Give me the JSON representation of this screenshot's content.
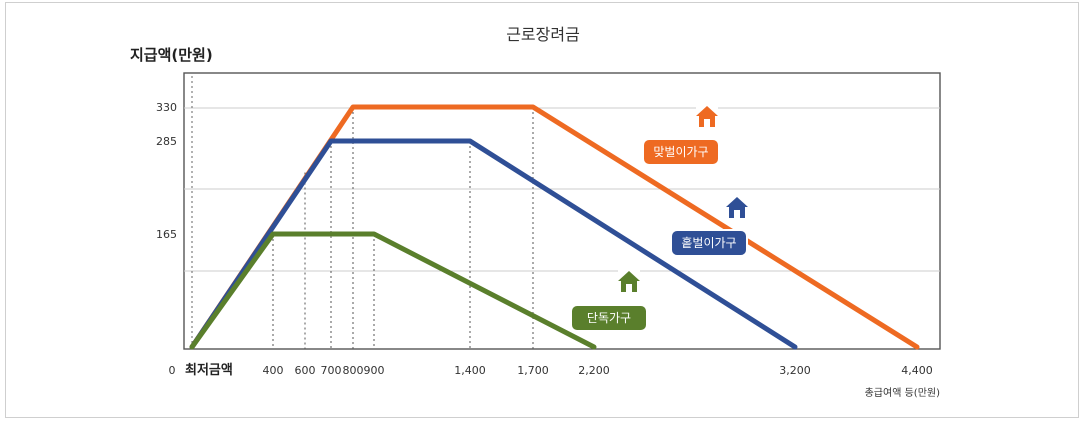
{
  "chart_data": {
    "type": "line",
    "title": "근로장려금",
    "ylabel": "지급액(만원)",
    "xlabel": "총급여액 등(만원)",
    "x_origin_label": "0",
    "min_wage_label": "최저금액",
    "x_ticks": [
      {
        "value": 400,
        "label": "400"
      },
      {
        "value": 600,
        "label": "600"
      },
      {
        "value": 700,
        "label": "700"
      },
      {
        "value": 800,
        "label": "800"
      },
      {
        "value": 900,
        "label": "900"
      },
      {
        "value": 1400,
        "label": "1,400"
      },
      {
        "value": 1700,
        "label": "1,700"
      },
      {
        "value": 2200,
        "label": "2,200"
      },
      {
        "value": 3200,
        "label": "3,200"
      },
      {
        "value": 4400,
        "label": "4,400"
      }
    ],
    "y_ticks": [
      {
        "value": 165,
        "label": "165"
      },
      {
        "value": 285,
        "label": "285"
      },
      {
        "value": 330,
        "label": "330"
      }
    ],
    "series": [
      {
        "name": "단독가구",
        "color": "#5a7f2c",
        "x": [
          0,
          400,
          900,
          2200
        ],
        "y": [
          0,
          165,
          165,
          0
        ],
        "icon": "house-icon"
      },
      {
        "name": "홑벌이가구",
        "color": "#2f4f96",
        "x": [
          0,
          700,
          1400,
          3200
        ],
        "y": [
          0,
          285,
          285,
          0
        ],
        "icon": "house-icon"
      },
      {
        "name": "맞벌이가구",
        "color": "#ee6a22",
        "x": [
          0,
          800,
          1700,
          4400
        ],
        "y": [
          0,
          330,
          330,
          0
        ],
        "icon": "house-icon"
      }
    ]
  }
}
